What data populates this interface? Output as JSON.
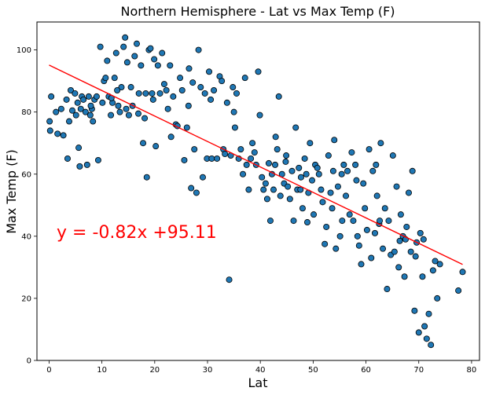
{
  "chart_data": {
    "type": "scatter",
    "title": "Northern Hemisphere - Lat vs Max Temp (F)",
    "xlabel": "Lat",
    "ylabel": "Max Temp (F)",
    "xlim": [
      -2.3,
      81.5
    ],
    "ylim": [
      0,
      109
    ],
    "x_ticks": [
      0,
      10,
      20,
      30,
      40,
      50,
      60,
      70,
      80
    ],
    "y_ticks": [
      0,
      20,
      40,
      60,
      80,
      100
    ],
    "grid": false,
    "point_color": "#1f77b4",
    "point_edge_color": "#000000",
    "regression": {
      "slope": -0.82,
      "intercept": 95.11,
      "x_range": [
        0,
        78.3
      ],
      "color": "#ff0000",
      "equation_text": "y = -0.82x +95.11"
    },
    "points": [
      [
        0.1,
        77
      ],
      [
        0.2,
        74
      ],
      [
        0.4,
        85
      ],
      [
        1.3,
        80
      ],
      [
        1.6,
        73
      ],
      [
        2.3,
        81
      ],
      [
        2.7,
        72.5
      ],
      [
        3.3,
        84
      ],
      [
        3.5,
        65
      ],
      [
        3.8,
        77
      ],
      [
        4.1,
        87
      ],
      [
        4.4,
        80.5
      ],
      [
        4.9,
        86
      ],
      [
        5.1,
        79
      ],
      [
        5.4,
        83
      ],
      [
        5.6,
        68.5
      ],
      [
        5.8,
        62.5
      ],
      [
        6.0,
        81
      ],
      [
        6.2,
        85
      ],
      [
        6.5,
        84
      ],
      [
        6.9,
        80
      ],
      [
        7.2,
        63
      ],
      [
        7.5,
        85
      ],
      [
        7.8,
        79
      ],
      [
        8.1,
        81
      ],
      [
        8.3,
        77
      ],
      [
        8.6,
        84
      ],
      [
        9.0,
        85
      ],
      [
        9.3,
        64.5
      ],
      [
        9.7,
        101
      ],
      [
        10.1,
        83
      ],
      [
        10.4,
        90
      ],
      [
        10.7,
        91
      ],
      [
        11.0,
        96.5
      ],
      [
        11.3,
        85
      ],
      [
        11.7,
        79
      ],
      [
        12.0,
        83
      ],
      [
        12.4,
        91
      ],
      [
        12.7,
        99
      ],
      [
        13.1,
        82
      ],
      [
        13.4,
        80
      ],
      [
        13.7,
        88
      ],
      [
        14.1,
        101
      ],
      [
        14.4,
        104
      ],
      [
        14.8,
        96
      ],
      [
        15.1,
        79
      ],
      [
        15.5,
        88
      ],
      [
        15.8,
        82
      ],
      [
        16.2,
        98
      ],
      [
        16.6,
        102
      ],
      [
        17.0,
        86
      ],
      [
        17.4,
        95
      ],
      [
        17.8,
        70
      ],
      [
        18.1,
        78
      ],
      [
        18.5,
        59
      ],
      [
        18.9,
        100
      ],
      [
        19.2,
        100.5
      ],
      [
        19.5,
        86
      ],
      [
        19.9,
        97
      ],
      [
        20.2,
        69
      ],
      [
        20.6,
        95
      ],
      [
        21.0,
        86
      ],
      [
        21.4,
        99
      ],
      [
        21.8,
        89
      ],
      [
        22.2,
        87
      ],
      [
        22.5,
        81
      ],
      [
        23.1,
        72
      ],
      [
        23.5,
        85
      ],
      [
        24.0,
        76
      ],
      [
        24.3,
        75.5
      ],
      [
        24.8,
        91
      ],
      [
        25.2,
        87
      ],
      [
        25.6,
        64.5
      ],
      [
        26.1,
        75
      ],
      [
        26.5,
        94
      ],
      [
        26.9,
        55.5
      ],
      [
        27.2,
        89.5
      ],
      [
        27.5,
        68
      ],
      [
        27.9,
        54
      ],
      [
        28.3,
        100
      ],
      [
        28.7,
        88
      ],
      [
        29.1,
        59
      ],
      [
        29.5,
        86
      ],
      [
        29.9,
        65
      ],
      [
        30.3,
        93
      ],
      [
        30.8,
        65
      ],
      [
        31.2,
        87
      ],
      [
        31.8,
        65
      ],
      [
        32.3,
        91.5
      ],
      [
        32.7,
        90
      ],
      [
        33.0,
        68
      ],
      [
        33.3,
        66.5
      ],
      [
        33.7,
        83
      ],
      [
        34.1,
        26
      ],
      [
        34.4,
        66
      ],
      [
        34.8,
        88
      ],
      [
        35.2,
        75
      ],
      [
        35.5,
        86
      ],
      [
        35.9,
        65
      ],
      [
        36.3,
        68
      ],
      [
        36.7,
        60
      ],
      [
        37.1,
        91
      ],
      [
        37.4,
        63
      ],
      [
        37.8,
        55
      ],
      [
        38.2,
        65
      ],
      [
        38.5,
        70
      ],
      [
        38.9,
        67
      ],
      [
        39.2,
        63
      ],
      [
        39.6,
        93
      ],
      [
        39.9,
        79
      ],
      [
        40.3,
        59
      ],
      [
        40.6,
        55
      ],
      [
        41.0,
        57
      ],
      [
        41.3,
        52
      ],
      [
        41.6,
        63.5
      ],
      [
        41.9,
        45
      ],
      [
        42.2,
        60
      ],
      [
        42.5,
        55
      ],
      [
        42.8,
        63
      ],
      [
        43.2,
        68
      ],
      [
        43.5,
        85
      ],
      [
        43.8,
        53
      ],
      [
        44.1,
        60
      ],
      [
        44.5,
        57
      ],
      [
        44.8,
        64
      ],
      [
        45.2,
        56
      ],
      [
        45.6,
        52
      ],
      [
        46.0,
        61
      ],
      [
        46.3,
        45
      ],
      [
        46.7,
        75
      ],
      [
        47.0,
        55
      ],
      [
        47.3,
        62
      ],
      [
        47.7,
        59
      ],
      [
        48.0,
        49
      ],
      [
        48.4,
        65
      ],
      [
        48.7,
        60
      ],
      [
        49.1,
        54
      ],
      [
        49.4,
        70
      ],
      [
        49.8,
        58
      ],
      [
        50.1,
        47
      ],
      [
        50.4,
        63
      ],
      [
        50.8,
        62
      ],
      [
        51.1,
        60
      ],
      [
        51.5,
        55
      ],
      [
        51.8,
        51
      ],
      [
        52.2,
        37.5
      ],
      [
        52.5,
        43
      ],
      [
        52.9,
        66
      ],
      [
        53.3,
        54
      ],
      [
        53.6,
        49
      ],
      [
        54.0,
        71
      ],
      [
        54.3,
        36
      ],
      [
        54.7,
        56
      ],
      [
        55.1,
        40
      ],
      [
        55.4,
        60
      ],
      [
        55.8,
        63
      ],
      [
        56.2,
        53
      ],
      [
        56.5,
        61
      ],
      [
        56.9,
        47
      ],
      [
        57.3,
        67
      ],
      [
        57.6,
        45
      ],
      [
        58.0,
        63
      ],
      [
        58.4,
        40
      ],
      [
        58.7,
        37
      ],
      [
        59.1,
        31
      ],
      [
        59.5,
        57
      ],
      [
        59.8,
        49
      ],
      [
        60.2,
        42
      ],
      [
        60.6,
        68
      ],
      [
        61.0,
        33
      ],
      [
        61.3,
        61
      ],
      [
        61.7,
        41
      ],
      [
        62.1,
        53
      ],
      [
        62.5,
        44
      ],
      [
        62.8,
        70
      ],
      [
        63.2,
        36
      ],
      [
        63.6,
        49
      ],
      [
        64.0,
        23
      ],
      [
        64.3,
        45
      ],
      [
        64.7,
        34
      ],
      [
        65.1,
        66
      ],
      [
        65.4,
        35
      ],
      [
        65.8,
        56
      ],
      [
        66.2,
        30
      ],
      [
        66.6,
        47
      ],
      [
        67.0,
        40
      ],
      [
        67.3,
        27
      ],
      [
        67.7,
        43
      ],
      [
        68.1,
        54
      ],
      [
        68.5,
        35
      ],
      [
        68.8,
        61
      ],
      [
        69.2,
        16
      ],
      [
        69.6,
        38
      ],
      [
        70.0,
        9
      ],
      [
        70.3,
        41
      ],
      [
        70.7,
        27
      ],
      [
        71.1,
        11
      ],
      [
        71.5,
        7
      ],
      [
        71.9,
        15
      ],
      [
        72.3,
        5
      ],
      [
        72.7,
        29
      ],
      [
        73.1,
        32
      ],
      [
        73.5,
        20
      ],
      [
        74.0,
        31
      ],
      [
        77.5,
        22.5
      ],
      [
        78.3,
        28.5
      ],
      [
        11.8,
        84.5
      ],
      [
        14.6,
        81
      ],
      [
        16.9,
        79.5
      ],
      [
        19.7,
        84
      ],
      [
        22.9,
        95
      ],
      [
        26.4,
        82
      ],
      [
        30.6,
        84
      ],
      [
        44.9,
        66
      ],
      [
        48.9,
        44.5
      ],
      [
        53.8,
        61
      ],
      [
        58.2,
        58
      ],
      [
        61.9,
        63
      ],
      [
        66.4,
        38.5
      ],
      [
        69.4,
        33.5
      ],
      [
        7.9,
        82
      ],
      [
        12.9,
        87
      ],
      [
        18.3,
        86
      ],
      [
        35.0,
        80
      ],
      [
        42.9,
        72
      ],
      [
        47.6,
        55
      ],
      [
        55.5,
        45
      ],
      [
        62.6,
        45
      ],
      [
        67.5,
        39
      ],
      [
        70.9,
        39
      ]
    ]
  }
}
